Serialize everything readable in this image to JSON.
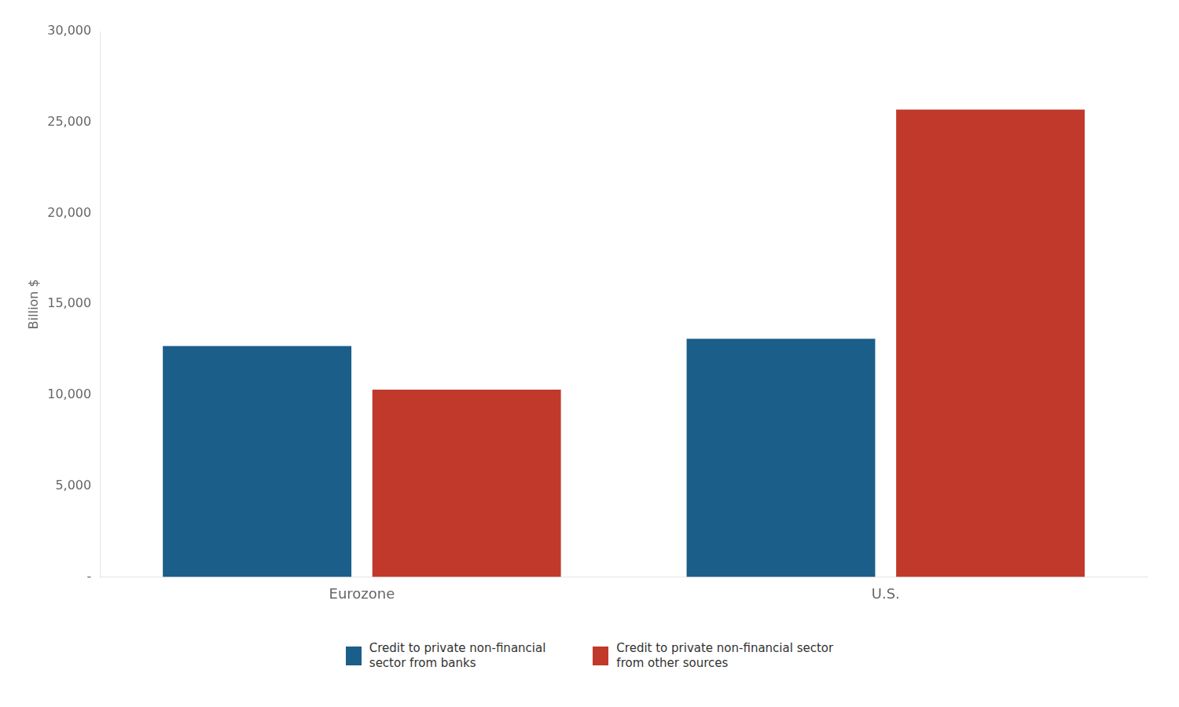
{
  "chart_data": {
    "type": "bar",
    "categories": [
      "Eurozone",
      "U.S."
    ],
    "series": [
      {
        "name": "Credit to private non-financial\nsector from banks",
        "color": "#1b5e8a",
        "values": [
          12700,
          13100
        ]
      },
      {
        "name": "Credit to private non-financial sector\nfrom other sources",
        "color": "#c0392b",
        "values": [
          10300,
          25700
        ]
      }
    ],
    "ylabel": "Billion $",
    "ylim": [
      0,
      30000
    ],
    "yticks": [
      {
        "value": 0,
        "label": "-"
      },
      {
        "value": 5000,
        "label": "5,000"
      },
      {
        "value": 10000,
        "label": "10,000"
      },
      {
        "value": 15000,
        "label": "15,000"
      },
      {
        "value": 20000,
        "label": "20,000"
      },
      {
        "value": 25000,
        "label": "25,000"
      },
      {
        "value": 30000,
        "label": "30,000"
      }
    ],
    "grid": false,
    "legend": "bottom"
  }
}
